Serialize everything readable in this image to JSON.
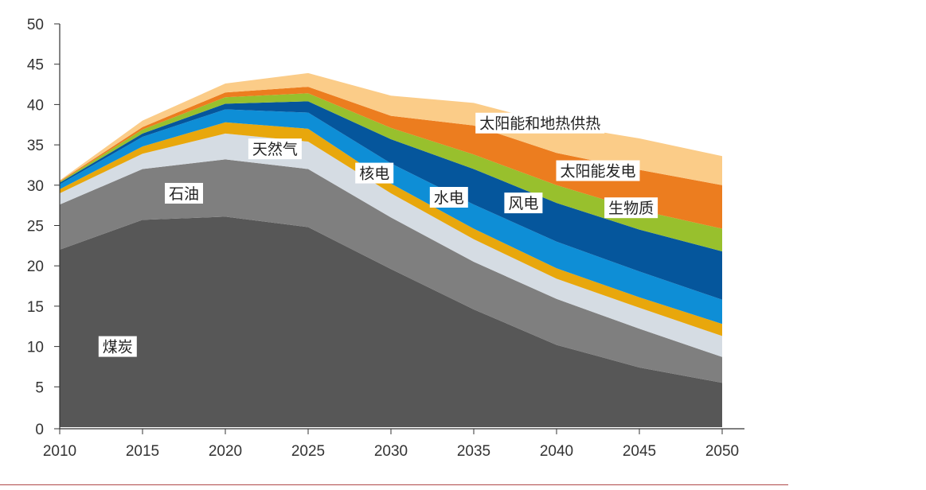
{
  "chart_data": {
    "type": "area",
    "stacked": true,
    "title": "",
    "xlabel": "",
    "ylabel": "",
    "x": [
      2010,
      2015,
      2020,
      2025,
      2030,
      2035,
      2040,
      2045,
      2050
    ],
    "xticks": [
      "2010",
      "2015",
      "2020",
      "2025",
      "2030",
      "2035",
      "2040",
      "2045",
      "2050"
    ],
    "yticks": [
      "0",
      "5",
      "10",
      "15",
      "20",
      "25",
      "30",
      "35",
      "40",
      "45",
      "50"
    ],
    "ylim": [
      0,
      50
    ],
    "grid": false,
    "series": [
      {
        "name": "煤炭",
        "color": "#575757",
        "values": [
          22.0,
          25.7,
          26.1,
          24.8,
          19.6,
          14.6,
          10.2,
          7.4,
          5.5
        ]
      },
      {
        "name": "石油",
        "color": "#7f7f7f",
        "values": [
          5.6,
          6.3,
          7.1,
          7.2,
          6.4,
          5.9,
          5.7,
          4.8,
          3.2
        ]
      },
      {
        "name": "天然气",
        "color": "#d5dce3",
        "values": [
          1.4,
          1.9,
          3.2,
          3.4,
          3.0,
          2.8,
          2.5,
          2.6,
          2.6
        ]
      },
      {
        "name": "核电",
        "color": "#e8a70c",
        "values": [
          0.5,
          0.9,
          1.4,
          1.6,
          1.2,
          1.3,
          1.3,
          1.3,
          1.5
        ]
      },
      {
        "name": "水电",
        "color": "#0e8ed6",
        "values": [
          0.6,
          1.2,
          1.6,
          2.0,
          2.5,
          3.0,
          3.3,
          3.2,
          3.0
        ]
      },
      {
        "name": "风电",
        "color": "#05569c",
        "values": [
          0.2,
          0.4,
          0.7,
          1.4,
          3.0,
          4.4,
          4.8,
          5.2,
          6.0
        ]
      },
      {
        "name": "生物质",
        "color": "#98c02d",
        "values": [
          0.1,
          0.5,
          0.8,
          1.0,
          1.4,
          1.8,
          2.2,
          2.4,
          2.8
        ]
      },
      {
        "name": "太阳能发电",
        "color": "#ec7d1f",
        "values": [
          0.1,
          0.3,
          0.6,
          0.8,
          1.5,
          3.6,
          4.0,
          5.0,
          5.4
        ]
      },
      {
        "name": "太阳能和地热供热",
        "color": "#fbcc88",
        "values": [
          0.1,
          0.8,
          1.1,
          1.7,
          2.5,
          2.8,
          3.5,
          3.9,
          3.6
        ]
      }
    ],
    "annotations": [
      {
        "text": "煤炭",
        "series": "煤炭",
        "x": 2013.5,
        "y": 10
      },
      {
        "text": "石油",
        "series": "石油",
        "x": 2017.5,
        "y": 29
      },
      {
        "text": "天然气",
        "series": "天然气",
        "x": 2023.0,
        "y": 34.5
      },
      {
        "text": "核电",
        "series": "核电",
        "x": 2029.0,
        "y": 31.5
      },
      {
        "text": "水电",
        "series": "水电",
        "x": 2033.5,
        "y": 28.5
      },
      {
        "text": "风电",
        "series": "风电",
        "x": 2038.0,
        "y": 27.8
      },
      {
        "text": "生物质",
        "series": "生物质",
        "x": 2044.5,
        "y": 27.2
      },
      {
        "text": "太阳能发电",
        "series": "太阳能发电",
        "x": 2042.5,
        "y": 31.8
      },
      {
        "text": "太阳能和地热供热",
        "series": "太阳能和地热供热",
        "x": 2039.0,
        "y": 37.7
      }
    ]
  }
}
